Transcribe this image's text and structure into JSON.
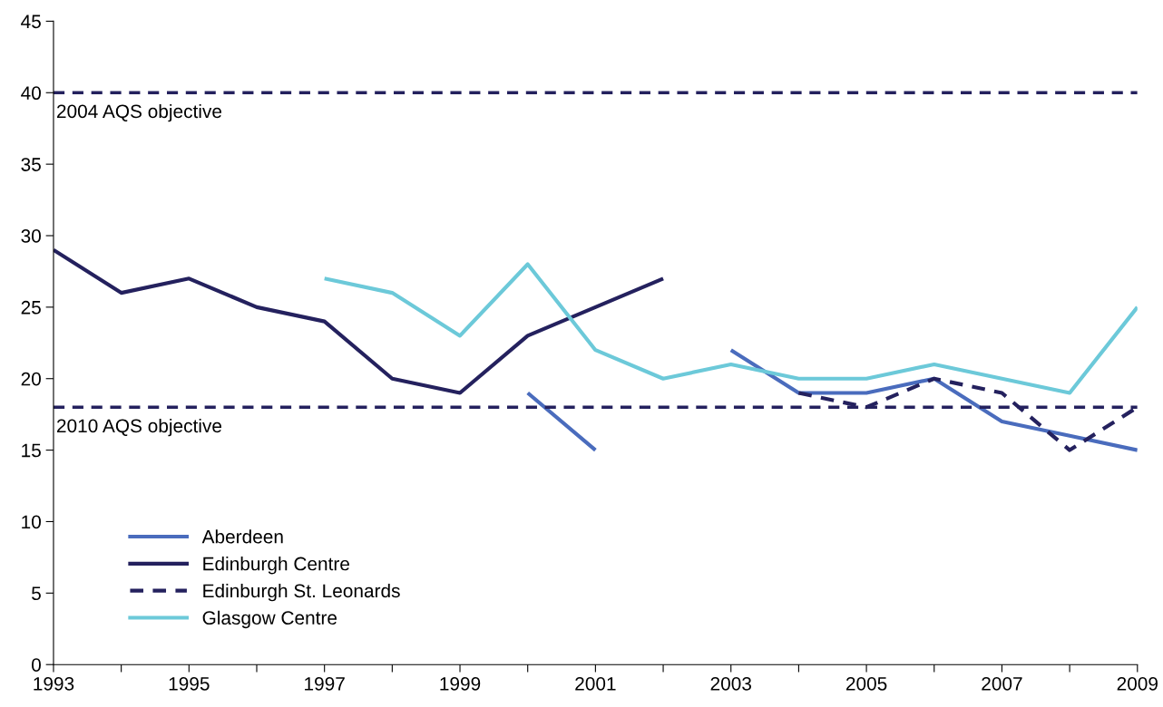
{
  "chart_data": {
    "type": "line",
    "x": [
      1993,
      1994,
      1995,
      1996,
      1997,
      1998,
      1999,
      2000,
      2001,
      2002,
      2003,
      2004,
      2005,
      2006,
      2007,
      2008,
      2009
    ],
    "series": [
      {
        "name": "Aberdeen",
        "color": "#4a6cbd",
        "values": [
          null,
          null,
          null,
          null,
          null,
          null,
          null,
          19,
          15,
          null,
          22,
          19,
          19,
          20,
          17,
          16,
          15
        ]
      },
      {
        "name": "Edinburgh Centre",
        "color": "#24215e",
        "values": [
          29,
          26,
          27,
          25,
          24,
          20,
          19,
          23,
          25,
          27,
          null,
          null,
          null,
          null,
          null,
          null,
          null
        ]
      },
      {
        "name": "Edinburgh St. Leonards",
        "color": "#24215e",
        "line_style": "dashed",
        "values": [
          null,
          null,
          null,
          null,
          null,
          null,
          null,
          null,
          null,
          null,
          null,
          19,
          18,
          20,
          19,
          15,
          18
        ]
      },
      {
        "name": "Glasgow Centre",
        "color": "#6cc9d9",
        "values": [
          null,
          null,
          null,
          null,
          27,
          26,
          23,
          28,
          22,
          20,
          21,
          20,
          20,
          21,
          20,
          19,
          25
        ]
      }
    ],
    "xlim": [
      1993,
      2009
    ],
    "xticks": [
      1993,
      {
        "value": 1994,
        "label": null
      },
      1995,
      {
        "value": 1996,
        "label": null
      },
      1997,
      {
        "value": 1998,
        "label": null
      },
      1999,
      {
        "value": 2000,
        "label": null
      },
      2001,
      {
        "value": 2002,
        "label": null
      },
      2003,
      {
        "value": 2004,
        "label": null
      },
      2005,
      {
        "value": 2006,
        "label": null
      },
      2007,
      {
        "value": 2008,
        "label": null
      },
      2009
    ],
    "ylim": [
      0,
      45
    ],
    "yticks": [
      0,
      5,
      10,
      15,
      20,
      25,
      30,
      35,
      40,
      45
    ],
    "ref_lines": [
      {
        "axis": "y",
        "value": 40,
        "label": "2004 AQS objective",
        "color": "#24215e",
        "line_style": "dashed"
      },
      {
        "axis": "y",
        "value": 18,
        "label": "2010 AQS objective",
        "color": "#24215e",
        "line_style": "dashed"
      }
    ],
    "grid": false,
    "legend": "bottom left",
    "marker": "none"
  }
}
